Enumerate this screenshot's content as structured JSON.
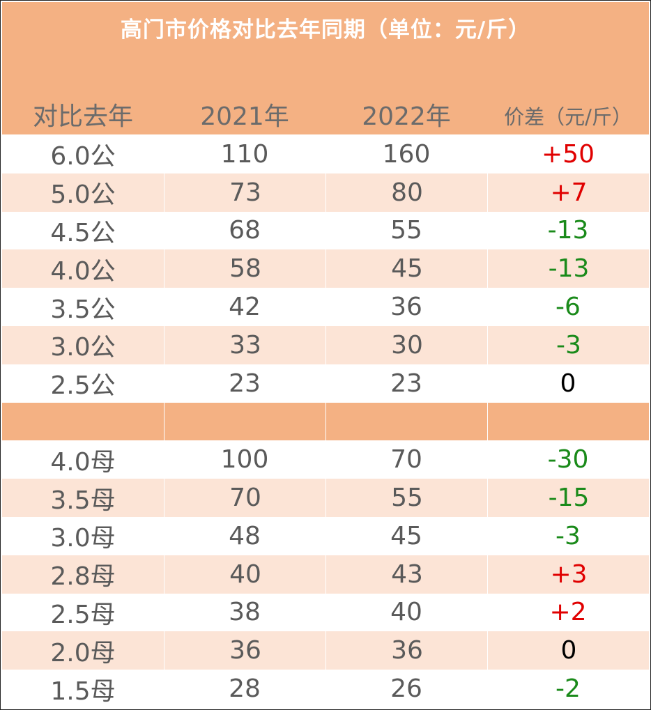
{
  "title": "高门市价格对比去年同期（单位：元/斤）",
  "headers": [
    "对比去年",
    "2021年",
    "2022年",
    "价差（元/斤）"
  ],
  "male_rows": [
    {
      "label": "6.0公",
      "y2021": "110",
      "y2022": "160",
      "diff": "+50",
      "trend": "pos"
    },
    {
      "label": "5.0公",
      "y2021": "73",
      "y2022": "80",
      "diff": "+7",
      "trend": "pos"
    },
    {
      "label": "4.5公",
      "y2021": "68",
      "y2022": "55",
      "diff": "-13",
      "trend": "neg"
    },
    {
      "label": "4.0公",
      "y2021": "58",
      "y2022": "45",
      "diff": "-13",
      "trend": "neg"
    },
    {
      "label": "3.5公",
      "y2021": "42",
      "y2022": "36",
      "diff": "-6",
      "trend": "neg"
    },
    {
      "label": "3.0公",
      "y2021": "33",
      "y2022": "30",
      "diff": "-3",
      "trend": "neg"
    },
    {
      "label": "2.5公",
      "y2021": "23",
      "y2022": "23",
      "diff": "0",
      "trend": "zero"
    }
  ],
  "female_rows": [
    {
      "label": "4.0母",
      "y2021": "100",
      "y2022": "70",
      "diff": "-30",
      "trend": "neg"
    },
    {
      "label": "3.5母",
      "y2021": "70",
      "y2022": "55",
      "diff": "-15",
      "trend": "neg"
    },
    {
      "label": "3.0母",
      "y2021": "48",
      "y2022": "45",
      "diff": "-3",
      "trend": "neg"
    },
    {
      "label": "2.8母",
      "y2021": "40",
      "y2022": "43",
      "diff": "+3",
      "trend": "pos"
    },
    {
      "label": "2.5母",
      "y2021": "38",
      "y2022": "40",
      "diff": "+2",
      "trend": "pos"
    },
    {
      "label": "2.0母",
      "y2021": "36",
      "y2022": "36",
      "diff": "0",
      "trend": "zero"
    },
    {
      "label": "1.5母",
      "y2021": "28",
      "y2022": "26",
      "diff": "-2",
      "trend": "neg"
    }
  ]
}
